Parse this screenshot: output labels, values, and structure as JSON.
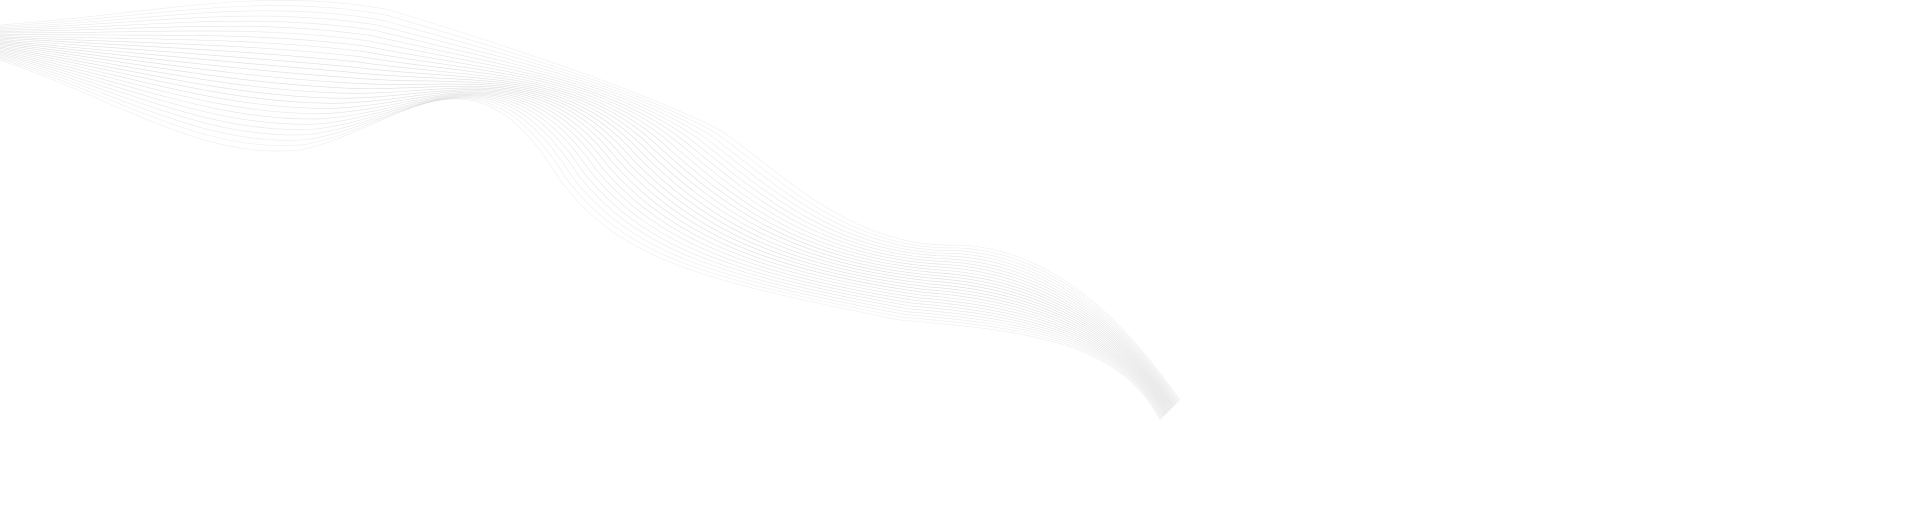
{
  "background": {
    "color": "#ffffff"
  },
  "decoration": {
    "type": "wave-line-band",
    "line_color": "#bdbdbd",
    "line_count": 28
  }
}
